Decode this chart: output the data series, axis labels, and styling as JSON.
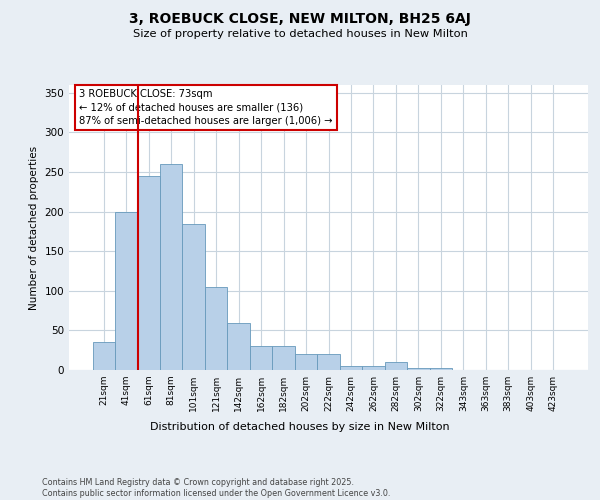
{
  "title1": "3, ROEBUCK CLOSE, NEW MILTON, BH25 6AJ",
  "title2": "Size of property relative to detached houses in New Milton",
  "xlabel": "Distribution of detached houses by size in New Milton",
  "ylabel": "Number of detached properties",
  "categories": [
    "21sqm",
    "41sqm",
    "61sqm",
    "81sqm",
    "101sqm",
    "121sqm",
    "142sqm",
    "162sqm",
    "182sqm",
    "202sqm",
    "222sqm",
    "242sqm",
    "262sqm",
    "282sqm",
    "302sqm",
    "322sqm",
    "343sqm",
    "363sqm",
    "383sqm",
    "403sqm",
    "423sqm"
  ],
  "values": [
    35,
    200,
    245,
    260,
    185,
    105,
    60,
    30,
    30,
    20,
    20,
    5,
    5,
    10,
    2,
    2,
    0,
    0,
    0,
    0,
    0
  ],
  "bar_color": "#b8d0e8",
  "bar_edge_color": "#6699bb",
  "vline_x_idx": 1.5,
  "vline_color": "#cc0000",
  "annotation_text": "3 ROEBUCK CLOSE: 73sqm\n← 12% of detached houses are smaller (136)\n87% of semi-detached houses are larger (1,006) →",
  "annotation_box_edgecolor": "#cc0000",
  "ylim": [
    0,
    360
  ],
  "yticks": [
    0,
    50,
    100,
    150,
    200,
    250,
    300,
    350
  ],
  "footer": "Contains HM Land Registry data © Crown copyright and database right 2025.\nContains public sector information licensed under the Open Government Licence v3.0.",
  "bg_color": "#e8eef4",
  "plot_bg_color": "#ffffff",
  "grid_color": "#c8d4de"
}
